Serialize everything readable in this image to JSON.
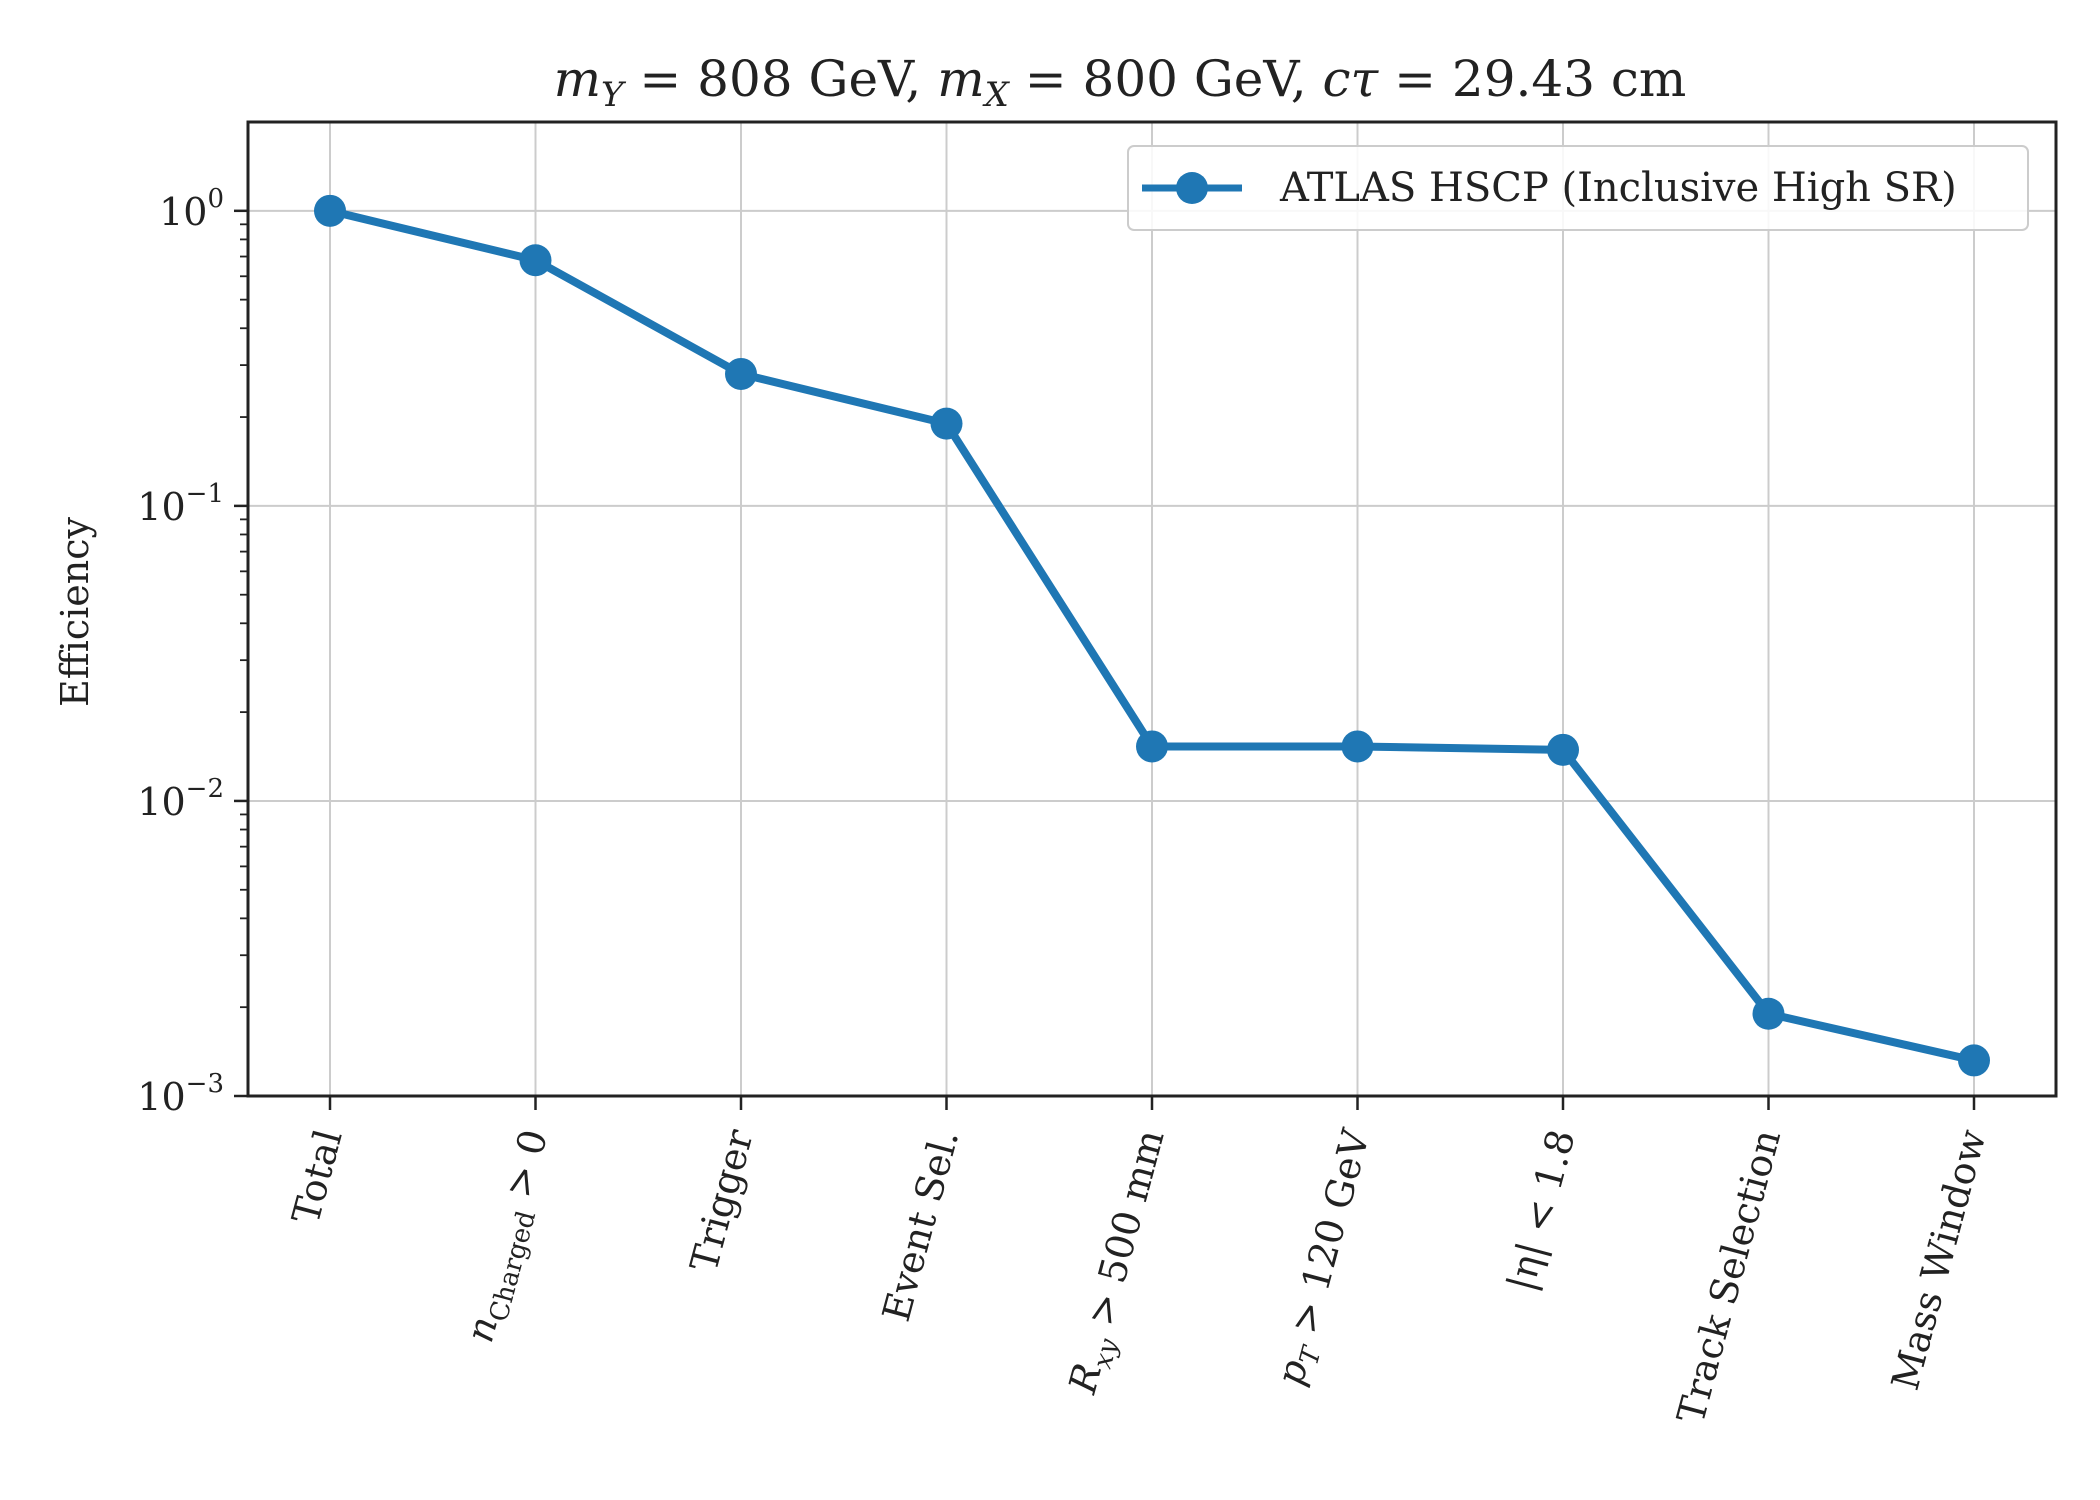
{
  "chart_data": {
    "type": "line",
    "title": "m_Y = 808 GeV, m_X = 800 GeV, cτ = 29.43 cm",
    "title_parts": {
      "m1": "m",
      "s1": "Y",
      "eq1": " = 808 GeV, ",
      "m2": "m",
      "s2": "X",
      "eq2": " = 800 GeV, ",
      "ct": "cτ",
      "eq3": " = 29.43 cm"
    },
    "xlabel": "",
    "ylabel": "Efficiency",
    "yscale": "log",
    "ylim": [
      0.001,
      2.0
    ],
    "y_ticks": [
      {
        "value": 1,
        "base": "10",
        "exp": "0"
      },
      {
        "value": 0.1,
        "base": "10",
        "exp": "−1"
      },
      {
        "value": 0.01,
        "base": "10",
        "exp": "−2"
      },
      {
        "value": 0.001,
        "base": "10",
        "exp": "−3"
      }
    ],
    "categories": [
      "Total",
      "n_Charged > 0",
      "Trigger",
      "Event Sel.",
      "R_xy > 500 mm",
      "p_T > 120 GeV",
      "|η| < 1.8",
      "Track Selection",
      "Mass Window"
    ],
    "category_parts": [
      {
        "main": "Total",
        "sub": "",
        "rest": ""
      },
      {
        "main": "n",
        "sub": "Charged",
        "rest": " > 0"
      },
      {
        "main": "Trigger",
        "sub": "",
        "rest": ""
      },
      {
        "main": "Event Sel.",
        "sub": "",
        "rest": ""
      },
      {
        "main": "R",
        "sub": "xy",
        "rest": " > 500 mm"
      },
      {
        "main": "p",
        "sub": "T",
        "rest": " > 120 GeV"
      },
      {
        "main": "|η| < 1.8",
        "sub": "",
        "rest": ""
      },
      {
        "main": "Track Selection",
        "sub": "",
        "rest": ""
      },
      {
        "main": "Mass Window",
        "sub": "",
        "rest": ""
      }
    ],
    "series": [
      {
        "name": "ATLAS HSCP (Inclusive High SR)",
        "color": "#1f77b4",
        "values": [
          1.0,
          0.68,
          0.28,
          0.19,
          0.0153,
          0.0153,
          0.0149,
          0.0019,
          0.00132
        ]
      }
    ],
    "grid": true,
    "legend_position": "top-right"
  }
}
